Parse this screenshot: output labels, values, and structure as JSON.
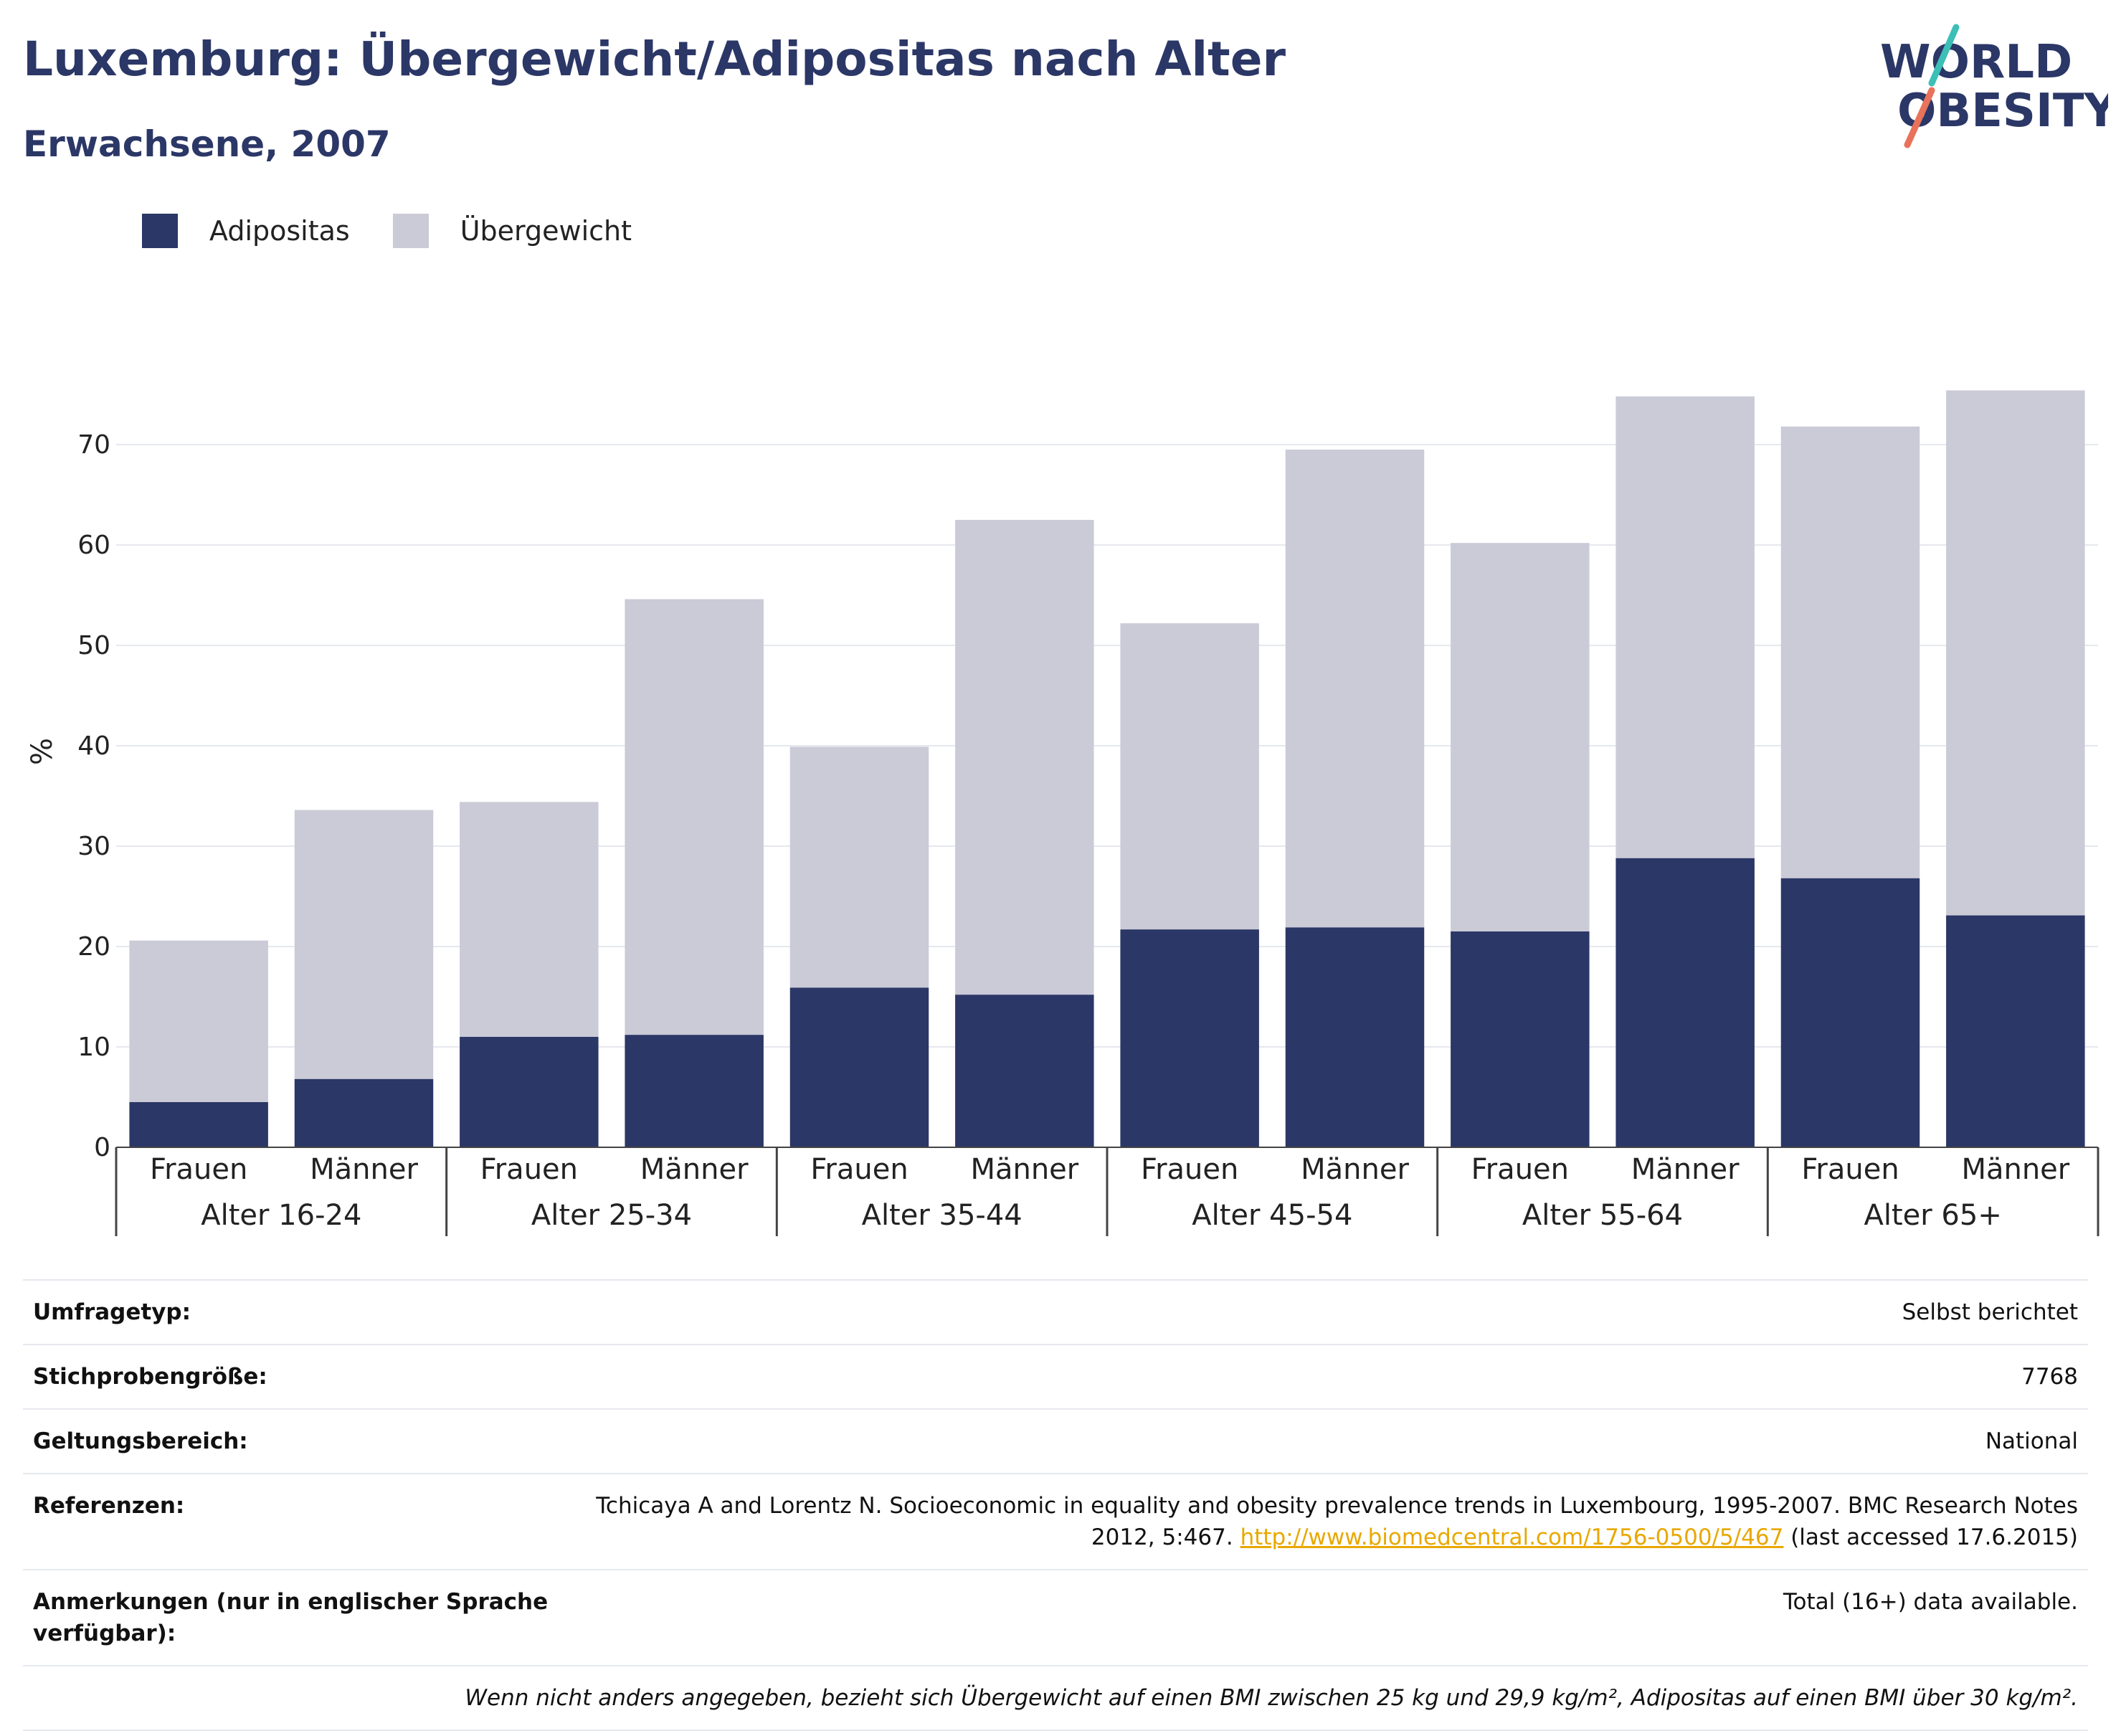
{
  "header": {
    "title": "Luxemburg: Übergewicht/Adipositas nach Alter",
    "subtitle": "Erwachsene, 2007",
    "logo_line1": "WORLD",
    "logo_line2": "OBESITY"
  },
  "colors": {
    "obesity": "#2b3766",
    "overweight": "#cacbd7",
    "title": "#2b3766",
    "link": "#e8a800",
    "logo_teal": "#3bbfb7",
    "logo_coral": "#e8735a"
  },
  "legend": {
    "items": [
      {
        "label": "Adipositas",
        "color": "#2b3766"
      },
      {
        "label": "Übergewicht",
        "color": "#cacbd7"
      }
    ]
  },
  "chart_data": {
    "type": "bar",
    "stacked": true,
    "title": "Luxemburg: Übergewicht/Adipositas nach Alter",
    "subtitle": "Erwachsene, 2007",
    "ylabel": "%",
    "ylim": [
      0,
      80
    ],
    "yticks": [
      0,
      10,
      20,
      30,
      40,
      50,
      60,
      70
    ],
    "grid": true,
    "legend_position": "top-left",
    "groups": [
      "Alter 16-24",
      "Alter 25-34",
      "Alter 35-44",
      "Alter 45-54",
      "Alter 55-64",
      "Alter 65+"
    ],
    "subcategories": [
      "Frauen",
      "Männer"
    ],
    "categories": [
      "Alter 16-24 Frauen",
      "Alter 16-24 Männer",
      "Alter 25-34 Frauen",
      "Alter 25-34 Männer",
      "Alter 35-44 Frauen",
      "Alter 35-44 Männer",
      "Alter 45-54 Frauen",
      "Alter 45-54 Männer",
      "Alter 55-64 Frauen",
      "Alter 55-64 Männer",
      "Alter 65+ Frauen",
      "Alter 65+ Männer"
    ],
    "series": [
      {
        "name": "Adipositas",
        "values": [
          4.5,
          6.8,
          11.0,
          11.2,
          15.9,
          15.2,
          21.7,
          21.9,
          21.5,
          28.8,
          26.8,
          23.1
        ]
      },
      {
        "name": "Übergewicht",
        "values": [
          16.1,
          26.8,
          23.4,
          43.4,
          24.0,
          47.3,
          30.5,
          47.6,
          38.7,
          46.0,
          45.0,
          52.3
        ]
      }
    ]
  },
  "info_table": {
    "rows": [
      {
        "key": "Umfragetyp:",
        "value": "Selbst berichtet"
      },
      {
        "key": "Stichprobengröße:",
        "value": "7768"
      },
      {
        "key": "Geltungsbereich:",
        "value": "National"
      },
      {
        "key": "Referenzen:",
        "value": "Tchicaya A and Lorentz N. Socioeconomic in equality and obesity prevalence trends in Luxembourg, 1995-2007. BMC Research Notes 2012, 5:467.",
        "link": "http://www.biomedcentral.com/1756-0500/5/467",
        "suffix": "(last accessed 17.6.2015)"
      },
      {
        "key": "Anmerkungen (nur in englischer Sprache verfügbar):",
        "value": "Total (16+) data available."
      }
    ],
    "footnote": "Wenn nicht anders angegeben, bezieht sich Übergewicht auf einen BMI zwischen 25 kg und 29,9 kg/m², Adipositas auf einen BMI über 30 kg/m²."
  }
}
